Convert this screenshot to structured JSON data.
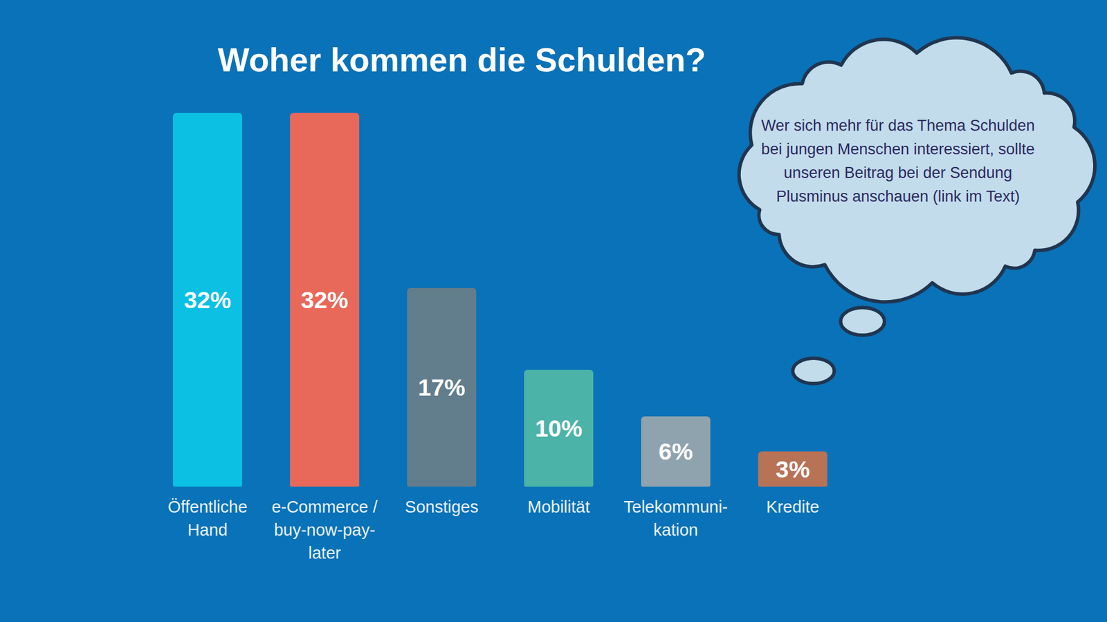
{
  "chart_data": {
    "type": "bar",
    "title": "Woher kommen die Schulden?",
    "categories": [
      "Öffentliche Hand",
      "e-Commerce / buy-now-pay-later",
      "Sonstiges",
      "Mobilität",
      "Telekommuni-kation",
      "Kredite"
    ],
    "values": [
      32,
      32,
      17,
      10,
      6,
      3
    ],
    "value_labels": [
      "32%",
      "32%",
      "17%",
      "10%",
      "6%",
      "3%"
    ],
    "colors": [
      "#0bc0e3",
      "#e8695a",
      "#627d8c",
      "#4cb3a8",
      "#8fa3ae",
      "#b87256"
    ],
    "ylim": [
      0,
      32
    ],
    "data_labels": true,
    "tick_labels": "x",
    "annotations": [
      "Wer sich mehr für das Thema Schulden bei jungen Menschen interessiert, sollte unseren Beitrag bei der Sendung Plusminus anschauen (link im Text)"
    ]
  }
}
